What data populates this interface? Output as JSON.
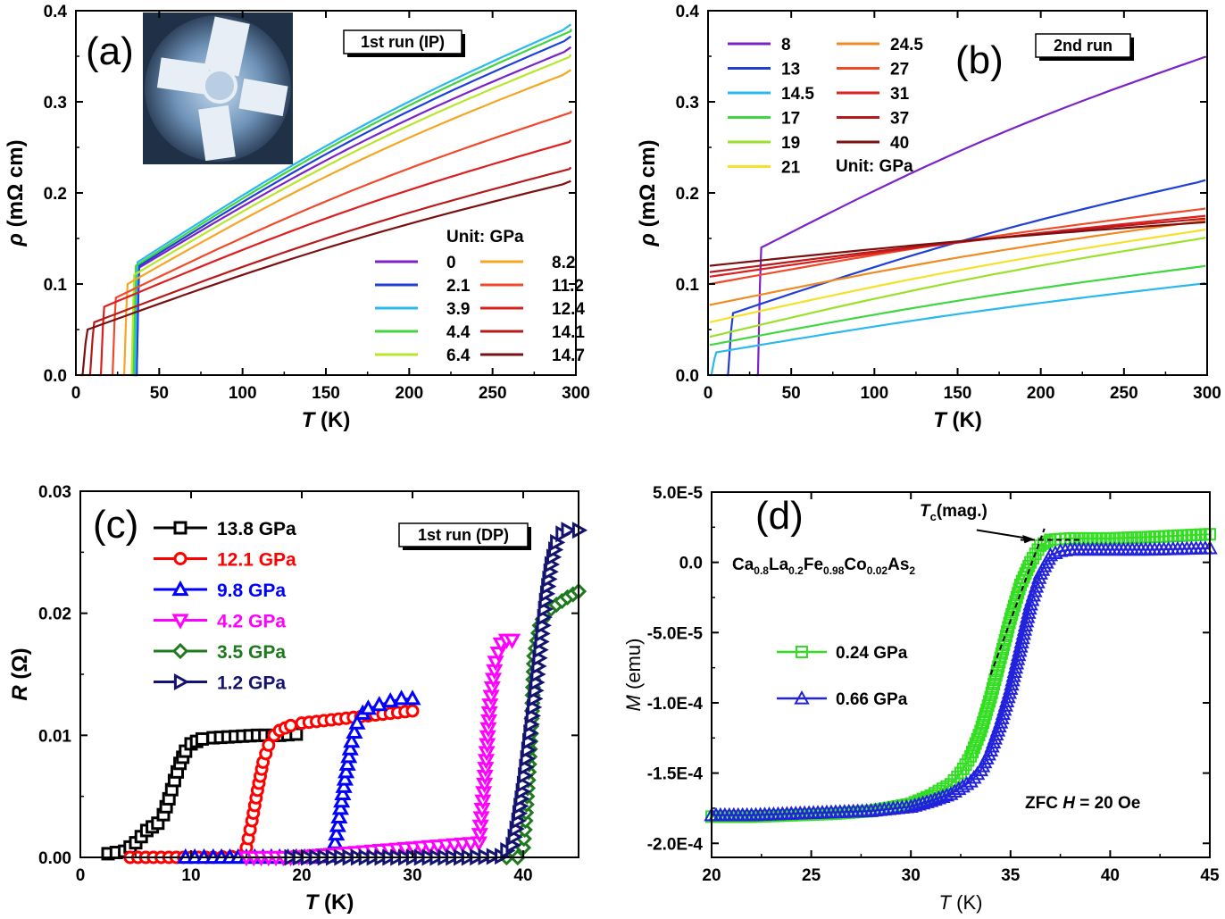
{
  "chart_data": [
    {
      "panel": "(a)",
      "type": "line",
      "run_label": "1st run (IP)",
      "xlabel": "T (K)",
      "xlabel_main": "T",
      "xlabel_unit": "(K)",
      "ylabel": "ρ (mΩ cm)",
      "ylabel_main": "ρ",
      "ylabel_unit": "(mΩ cm)",
      "xlim": [
        0,
        300
      ],
      "ylim": [
        0,
        0.4
      ],
      "xticks": [
        0,
        50,
        100,
        150,
        200,
        250,
        300
      ],
      "yticks": [
        0.0,
        0.1,
        0.2,
        0.3,
        0.4
      ],
      "ytick_labels": [
        "0.0",
        "0.1",
        "0.2",
        "0.3",
        "0.4"
      ],
      "legend_title": "Unit: GPa",
      "has_inset_photo": true,
      "series": [
        {
          "name": "0",
          "color": "#7b22c9",
          "tc": 38,
          "tw": 1.5,
          "r0": 0.118,
          "r300": 0.36
        },
        {
          "name": "2.1",
          "color": "#1f3fd6",
          "tc": 38,
          "tw": 1.5,
          "r0": 0.12,
          "r300": 0.372
        },
        {
          "name": "3.9",
          "color": "#2ab8ee",
          "tc": 37,
          "tw": 1.5,
          "r0": 0.124,
          "r300": 0.385
        },
        {
          "name": "4.4",
          "color": "#3fd63f",
          "tc": 36,
          "tw": 1.5,
          "r0": 0.12,
          "r300": 0.38
        },
        {
          "name": "6.4",
          "color": "#b8e62a",
          "tc": 35,
          "tw": 1.5,
          "r0": 0.11,
          "r300": 0.352
        },
        {
          "name": "8.2",
          "color": "#f5a623",
          "tc": 31,
          "tw": 2,
          "r0": 0.1,
          "r300": 0.335
        },
        {
          "name": "11.2",
          "color": "#f04a2a",
          "tc": 24,
          "tw": 2,
          "r0": 0.085,
          "r300": 0.29
        },
        {
          "name": "12.4",
          "color": "#dd1f1f",
          "tc": 17,
          "tw": 2,
          "r0": 0.075,
          "r300": 0.258
        },
        {
          "name": "14.1",
          "color": "#b81a1a",
          "tc": 11,
          "tw": 2.5,
          "r0": 0.058,
          "r300": 0.228
        },
        {
          "name": "14.7",
          "color": "#7a1010",
          "tc": 7,
          "tw": 3,
          "r0": 0.05,
          "r300": 0.213
        }
      ]
    },
    {
      "panel": "(b)",
      "type": "line",
      "run_label": "2nd run",
      "xlabel": "T (K)",
      "xlabel_main": "T",
      "xlabel_unit": "(K)",
      "ylabel": "ρ (mΩ cm)",
      "ylabel_main": "ρ",
      "ylabel_unit": "(mΩ cm)",
      "xlim": [
        0,
        300
      ],
      "ylim": [
        0,
        0.4
      ],
      "xticks": [
        0,
        50,
        100,
        150,
        200,
        250,
        300
      ],
      "yticks": [
        0.0,
        0.1,
        0.2,
        0.3,
        0.4
      ],
      "ytick_labels": [
        "0.0",
        "0.1",
        "0.2",
        "0.3",
        "0.4"
      ],
      "legend_note": "Unit: GPa",
      "series": [
        {
          "name": "8",
          "color": "#7b22c9",
          "tc": 32,
          "tw": 2,
          "r0": 0.14,
          "r300": 0.35
        },
        {
          "name": "13",
          "color": "#1f3fd6",
          "tc": 15,
          "tw": 3,
          "r0": 0.068,
          "r300": 0.214
        },
        {
          "name": "14.5",
          "color": "#2ab8ee",
          "tc": 5,
          "tw": 3,
          "r0": 0.025,
          "r300": 0.101
        },
        {
          "name": "17",
          "color": "#3fd63f",
          "tc": 0,
          "tw": 0,
          "r0": 0.033,
          "r300": 0.12
        },
        {
          "name": "19",
          "color": "#9be02a",
          "tc": 0,
          "tw": 0,
          "r0": 0.042,
          "r300": 0.151
        },
        {
          "name": "21",
          "color": "#f5e02a",
          "tc": 0,
          "tw": 0,
          "r0": 0.058,
          "r300": 0.16
        },
        {
          "name": "24.5",
          "color": "#f08a23",
          "tc": 0,
          "tw": 0,
          "r0": 0.077,
          "r300": 0.17
        },
        {
          "name": "27",
          "color": "#f04a2a",
          "tc": 0,
          "tw": 0,
          "r0": 0.1,
          "r300": 0.183
        },
        {
          "name": "31",
          "color": "#dd1f1f",
          "tc": 0,
          "tw": 0,
          "r0": 0.108,
          "r300": 0.175
        },
        {
          "name": "37",
          "color": "#b81a1a",
          "tc": 0,
          "tw": 0,
          "r0": 0.113,
          "r300": 0.172
        },
        {
          "name": "40",
          "color": "#7a1010",
          "tc": 0,
          "tw": 0,
          "r0": 0.12,
          "r300": 0.168
        }
      ]
    },
    {
      "panel": "(c)",
      "type": "scatter",
      "run_label": "1st run (DP)",
      "xlabel": "T (K)",
      "xlabel_main": "T",
      "xlabel_unit": "(K)",
      "ylabel": "R (Ω)",
      "ylabel_main": "R",
      "ylabel_unit": "(Ω)",
      "xlim": [
        0,
        45
      ],
      "ylim": [
        0,
        0.03
      ],
      "xticks": [
        0,
        10,
        20,
        30,
        40
      ],
      "yticks": [
        0.0,
        0.01,
        0.02,
        0.03
      ],
      "ytick_labels": [
        "0.00",
        "0.01",
        "0.02",
        "0.03"
      ],
      "series": [
        {
          "name": "13.8 GPa",
          "color": "#000000",
          "marker": "square",
          "x": [
            2.5,
            4,
            5,
            6,
            7,
            7.5,
            8,
            8.5,
            9,
            9.5,
            10,
            11,
            12,
            14,
            16,
            18,
            19.5
          ],
          "y": [
            0.0003,
            0.0005,
            0.0012,
            0.0022,
            0.0028,
            0.0035,
            0.0048,
            0.0063,
            0.0077,
            0.0087,
            0.0093,
            0.0097,
            0.0098,
            0.0099,
            0.01,
            0.01,
            0.0101
          ]
        },
        {
          "name": "12.1 GPa",
          "color": "#ff0000",
          "marker": "circle",
          "x": [
            4.5,
            8,
            12,
            14.5,
            15,
            15.5,
            16,
            16.5,
            17,
            17.5,
            18,
            19,
            20,
            22,
            24,
            26,
            28,
            30
          ],
          "y": [
            0,
            0,
            0,
            0.0001,
            0.0008,
            0.003,
            0.0055,
            0.0078,
            0.0092,
            0.01,
            0.0104,
            0.0108,
            0.011,
            0.0112,
            0.0114,
            0.0116,
            0.0118,
            0.012
          ]
        },
        {
          "name": "9.8 GPa",
          "color": "#0000ff",
          "marker": "triangle-up",
          "x": [
            9.5,
            12,
            15,
            18,
            21,
            22.5,
            23,
            23.5,
            24,
            24.5,
            25,
            25.5,
            26,
            27,
            28,
            29,
            30
          ],
          "y": [
            0,
            0,
            0,
            0,
            0,
            0.0001,
            0.0012,
            0.004,
            0.007,
            0.0095,
            0.011,
            0.0118,
            0.0122,
            0.0125,
            0.0128,
            0.013,
            0.013
          ]
        },
        {
          "name": "4.2 GPa",
          "color": "#ff00ff",
          "marker": "triangle-down",
          "x": [
            15,
            17,
            19,
            36,
            36.5,
            37,
            37.5,
            38,
            38.5,
            39
          ],
          "y": [
            0,
            0,
            0,
            0.0012,
            0.006,
            0.0125,
            0.016,
            0.0175,
            0.0178,
            0.0178
          ]
        },
        {
          "name": "3.5 GPa",
          "color": "#1f7a1f",
          "marker": "diamond",
          "x": [
            38.5,
            39.5,
            40,
            40.2,
            40.5,
            40.8,
            41,
            41.5,
            42,
            43,
            44,
            45
          ],
          "y": [
            0,
            0,
            0.0008,
            0.003,
            0.007,
            0.012,
            0.0165,
            0.019,
            0.02,
            0.0207,
            0.0213,
            0.0218
          ]
        },
        {
          "name": "1.2 GPa",
          "color": "#141470",
          "marker": "triangle-right",
          "x": [
            19,
            25,
            30,
            35,
            38,
            39,
            39.5,
            40,
            40.5,
            41,
            41.5,
            42,
            42.5,
            43,
            43.5,
            44,
            45
          ],
          "y": [
            0,
            0,
            0,
            0,
            0.0001,
            0.001,
            0.003,
            0.006,
            0.0095,
            0.013,
            0.017,
            0.021,
            0.024,
            0.0258,
            0.0265,
            0.0268,
            0.0268
          ]
        }
      ]
    },
    {
      "panel": "(d)",
      "type": "scatter",
      "xlabel": "T (K)",
      "xlabel_main": "T",
      "xlabel_unit": "(K)",
      "ylabel": "M (emu)",
      "ylabel_main": "M",
      "ylabel_unit": "(emu)",
      "xlim": [
        20,
        45
      ],
      "ylim": [
        -0.00021,
        5e-05
      ],
      "xticks": [
        20,
        25,
        30,
        35,
        40,
        45
      ],
      "yticks": [
        5e-05,
        0.0,
        -5e-05,
        -0.0001,
        -0.00015,
        -0.0002
      ],
      "ytick_labels": [
        "5.0E-5",
        "0.0",
        "-5.0E-5",
        "-1.0E-4",
        "-1.5E-4",
        "-2.0E-4"
      ],
      "compound": "Ca0.8La0.2Fe0.98Co0.02As2",
      "conditions": "ZFC    H = 20 Oe",
      "tc_annotation": "Tc(mag.)",
      "series": [
        {
          "name": "0.24 GPa",
          "color": "#33dd22",
          "marker": "square-open",
          "x": [
            20,
            22,
            24,
            26,
            28,
            30,
            31,
            32,
            32.5,
            33,
            33.5,
            34,
            34.5,
            35,
            35.5,
            36,
            36.5,
            37,
            38,
            40,
            42,
            45
          ],
          "y": [
            -0.000181,
            -0.000181,
            -0.00018,
            -0.000179,
            -0.000177,
            -0.000172,
            -0.000166,
            -0.000158,
            -0.00015,
            -0.000138,
            -0.00012,
            -9.6e-05,
            -6.8e-05,
            -4e-05,
            -1.6e-05,
            0.0,
            1.2e-05,
            1.6e-05,
            1.7e-05,
            1.7e-05,
            1.8e-05,
            2e-05
          ]
        },
        {
          "name": "0.66 GPa",
          "color": "#2222dd",
          "marker": "triangle-open",
          "x": [
            20,
            22,
            24,
            26,
            28,
            30,
            31,
            32,
            33,
            33.5,
            34,
            34.5,
            35,
            35.5,
            36,
            36.5,
            37,
            37.5,
            38,
            40,
            42,
            45
          ],
          "y": [
            -0.00018,
            -0.00018,
            -0.000179,
            -0.000178,
            -0.000177,
            -0.000174,
            -0.00017,
            -0.000165,
            -0.000156,
            -0.000148,
            -0.000134,
            -0.000114,
            -9e-05,
            -6e-05,
            -3e-05,
            -8e-06,
            5e-06,
            8e-06,
            9e-06,
            9e-06,
            9e-06,
            1e-05
          ]
        }
      ]
    }
  ]
}
